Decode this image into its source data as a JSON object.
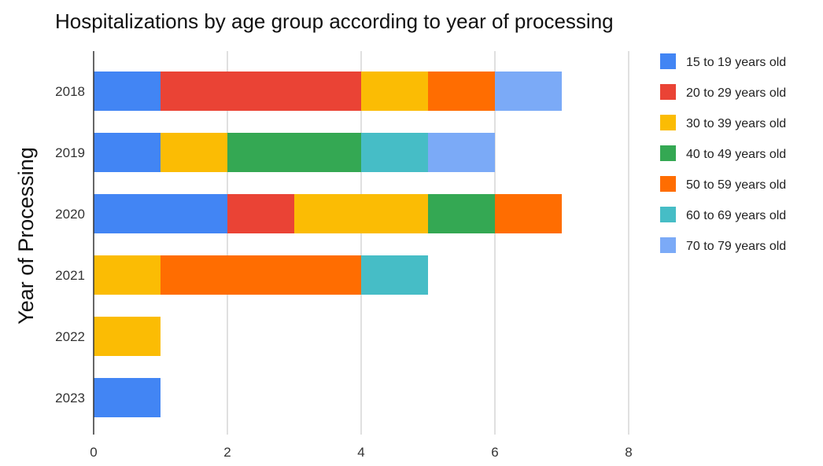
{
  "chart_data": {
    "type": "bar",
    "orientation": "horizontal",
    "stacked": true,
    "title": "Hospitalizations by age group according to year of processing",
    "xlabel": "",
    "ylabel": "Year of Processing",
    "categories": [
      "2018",
      "2019",
      "2020",
      "2021",
      "2022",
      "2023"
    ],
    "xlim": [
      0,
      8
    ],
    "xticks": [
      0,
      2,
      4,
      6,
      8
    ],
    "grid": true,
    "legend_position": "right",
    "series": [
      {
        "name": "15 to 19 years old",
        "color": "#4285F4",
        "values": [
          1,
          1,
          2,
          0,
          0,
          1
        ]
      },
      {
        "name": "20 to 29 years old",
        "color": "#EA4335",
        "values": [
          3,
          0,
          1,
          0,
          0,
          0
        ]
      },
      {
        "name": "30 to 39 years old",
        "color": "#FBBC04",
        "values": [
          1,
          1,
          2,
          1,
          1,
          0
        ]
      },
      {
        "name": "40 to 49 years old",
        "color": "#34A853",
        "values": [
          0,
          2,
          1,
          0,
          0,
          0
        ]
      },
      {
        "name": "50 to 59 years old",
        "color": "#FF6D01",
        "values": [
          1,
          0,
          1,
          3,
          0,
          0
        ]
      },
      {
        "name": "60 to 69 years old",
        "color": "#46BDC6",
        "values": [
          0,
          1,
          0,
          1,
          0,
          0
        ]
      },
      {
        "name": "70 to 79 years old",
        "color": "#7BAAF7",
        "values": [
          1,
          1,
          0,
          0,
          0,
          0
        ]
      }
    ]
  }
}
